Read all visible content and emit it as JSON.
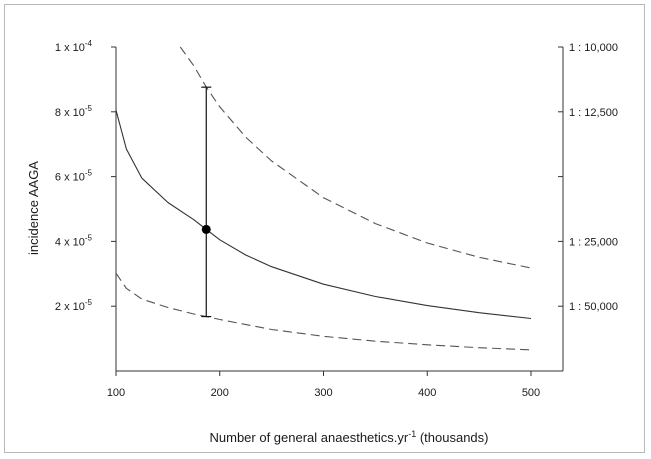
{
  "chart_data": {
    "type": "line",
    "title": "",
    "xlabel": "Number of general anaesthetics.yr",
    "xlabel_superscript": "-1",
    "xlabel_suffix": " (thousands)",
    "ylabel": "incidence AAGA",
    "xlim": [
      100,
      500
    ],
    "ylim": [
      0,
      0.0001
    ],
    "x_ticks": [
      {
        "value": 100,
        "label": "100"
      },
      {
        "value": 200,
        "label": "200"
      },
      {
        "value": 300,
        "label": "300"
      },
      {
        "value": 400,
        "label": "400"
      },
      {
        "value": 500,
        "label": "500"
      }
    ],
    "y_ticks": [
      {
        "value": 2e-05,
        "base": "2 x 10",
        "exp": "-5"
      },
      {
        "value": 4e-05,
        "base": "4 x 10",
        "exp": "-5"
      },
      {
        "value": 6e-05,
        "base": "6 x 10",
        "exp": "-5"
      },
      {
        "value": 8e-05,
        "base": "8 x 10",
        "exp": "-5"
      },
      {
        "value": 0.0001,
        "base": "1 x 10",
        "exp": "-4"
      }
    ],
    "y2_ticks": [
      {
        "value": 2e-05,
        "label": "1 : 50,000"
      },
      {
        "value": 4e-05,
        "label": "1 : 25,000"
      },
      {
        "value": 6e-05,
        "label": ""
      },
      {
        "value": 8e-05,
        "label": "1 : 12,500"
      },
      {
        "value": 0.0001,
        "label": "1 : 10,000"
      }
    ],
    "series": [
      {
        "style": "solid",
        "x": [
          100,
          110,
          125,
          150,
          175,
          187,
          200,
          225,
          250,
          300,
          350,
          400,
          450,
          500
        ],
        "y": [
          8.05e-05,
          6.85e-05,
          5.95e-05,
          5.2e-05,
          4.67e-05,
          4.37e-05,
          4.05e-05,
          3.58e-05,
          3.22e-05,
          2.68e-05,
          2.3e-05,
          2.02e-05,
          1.8e-05,
          1.62e-05
        ]
      },
      {
        "style": "dashed",
        "x": [
          162,
          175,
          187,
          200,
          225,
          250,
          300,
          350,
          400,
          450,
          500
        ],
        "y": [
          0.0001,
          9.42e-05,
          8.76e-05,
          8.15e-05,
          7.22e-05,
          6.48e-05,
          5.35e-05,
          4.55e-05,
          3.95e-05,
          3.51e-05,
          3.18e-05
        ]
      },
      {
        "style": "dashed",
        "x": [
          100,
          110,
          125,
          150,
          175,
          187,
          200,
          250,
          300,
          350,
          400,
          450,
          500
        ],
        "y": [
          3.02e-05,
          2.55e-05,
          2.22e-05,
          1.96e-05,
          1.76e-05,
          1.68e-05,
          1.59e-05,
          1.28e-05,
          1.07e-05,
          9.2e-06,
          8.1e-06,
          7.2e-06,
          6.5e-06
        ]
      }
    ],
    "marker": {
      "x": 187,
      "y": 4.37e-05
    },
    "error_bar": {
      "x": 187,
      "low": 1.68e-05,
      "high": 8.76e-05
    },
    "colors": {
      "solid": "#333333",
      "dashed": "#555555",
      "axis": "#333333"
    }
  }
}
